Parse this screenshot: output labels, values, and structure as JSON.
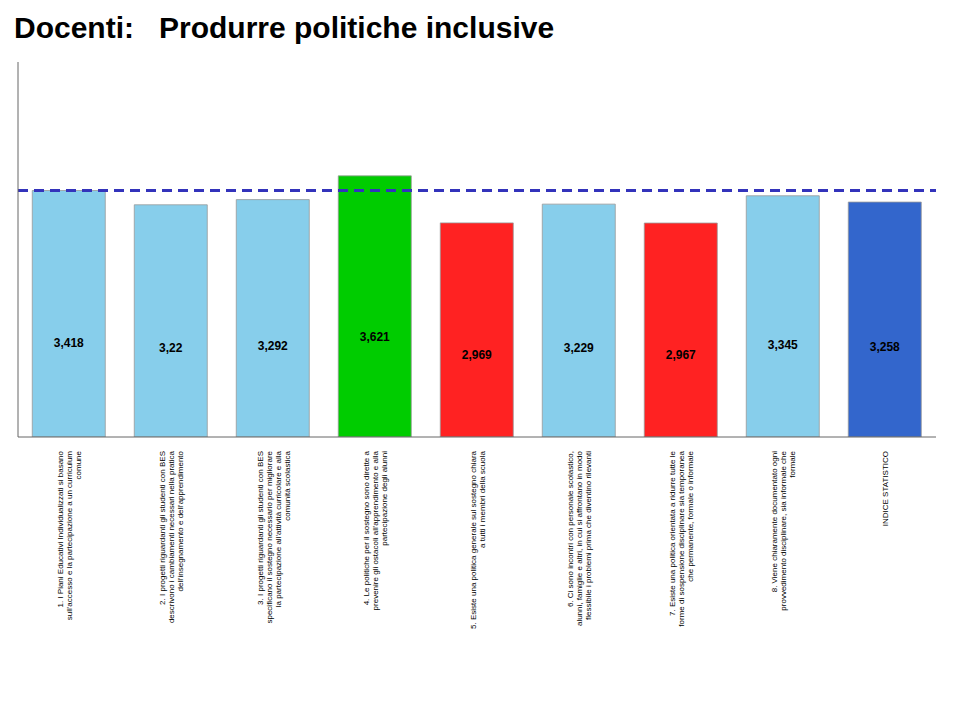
{
  "chart_data": {
    "type": "bar",
    "title": "Docenti:   Produrre politiche inclusive",
    "categories": [
      "1. I Piani Educativi Individualizzati si basano\nsull'accesso e la partecipazione a un curriculum\ncomune",
      "2. I progetti riguardanti gli studenti con BES\ndescrivono i cambiamenti necessari nella pratica\ndell'insegnamento e dell'apprendimento",
      "3. I progetti riguardanti gli studenti con BES\nspecificano il sostegno necessario per migliorare\nla partecipazione all'attività curricolare e alla\ncomunità scolastica",
      "4. Le politiche per il sostegno sono dirette a\nprevenire gli ostacoli all'apprendimento e alla\npartecipazione degli alunni",
      "5. Esiste una politica generale sul sostegno chiara\na tutti i membri della scuola",
      "6. Ci sono incontri con personale scolastico,\nalunni, famiglie e altri, in cui si affrontano in modo\nflessibile i problemi prima che diventino rilevanti",
      "7. Esiste una politica orientata a ridurre tutte le\nforme di sospensione disciplinare sia temporanea\nche permanente, formale o informale",
      "8. Viene chiaramente documentato ogni\nprovvedimento disciplinare, sia informale che\nformale",
      "INDICE STATISTICO"
    ],
    "values": [
      3.418,
      3.22,
      3.292,
      3.621,
      2.969,
      3.229,
      2.967,
      3.345,
      3.258
    ],
    "value_labels": [
      "3,418",
      "3,22",
      "3,292",
      "3,621",
      "2,969",
      "3,229",
      "2,967",
      "3,345",
      "3,258"
    ],
    "colors": [
      "#87CEEB",
      "#87CEEB",
      "#87CEEB",
      "#00CC00",
      "#FF2222",
      "#87CEEB",
      "#FF2222",
      "#87CEEB",
      "#3366CC"
    ],
    "reference_line": {
      "value": 3.418,
      "color": "#3333BB",
      "line_style": "dashed"
    },
    "ylim": [
      0,
      5.2
    ],
    "yticks": [],
    "tick_labels": "x",
    "data_labels": true,
    "grid": false
  }
}
